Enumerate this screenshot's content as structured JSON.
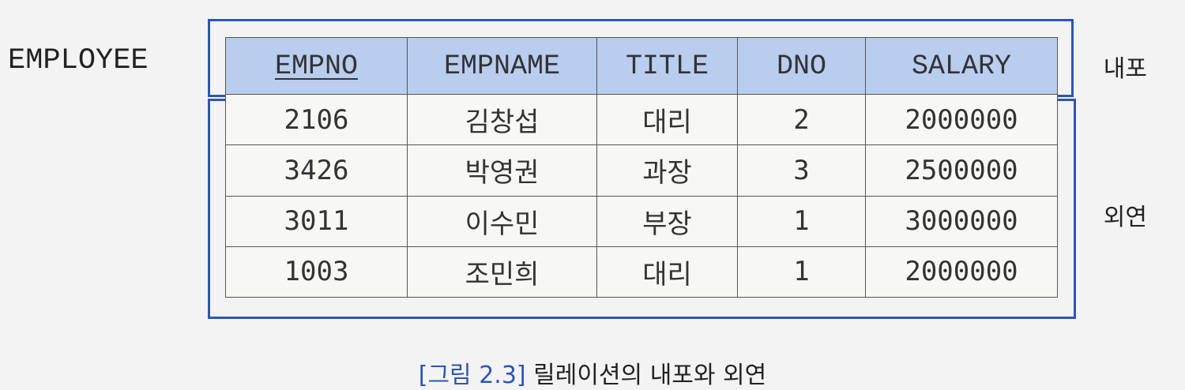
{
  "relation_name": "EMPLOYEE",
  "labels": {
    "intension": "내포",
    "extension": "외연"
  },
  "columns": [
    "EMPNO",
    "EMPNAME",
    "TITLE",
    "DNO",
    "SALARY"
  ],
  "primary_key": "EMPNO",
  "rows": [
    [
      "2106",
      "김창섭",
      "대리",
      "2",
      "2000000"
    ],
    [
      "3426",
      "박영권",
      "과장",
      "3",
      "2500000"
    ],
    [
      "3011",
      "이수민",
      "부장",
      "1",
      "3000000"
    ],
    [
      "1003",
      "조민희",
      "대리",
      "1",
      "2000000"
    ]
  ],
  "caption": {
    "figure": "[그림 2.3]",
    "text": "릴레이션의 내포와 외연"
  },
  "colors": {
    "frame": "#2d56b4",
    "header_bg": "#b9cdef"
  }
}
